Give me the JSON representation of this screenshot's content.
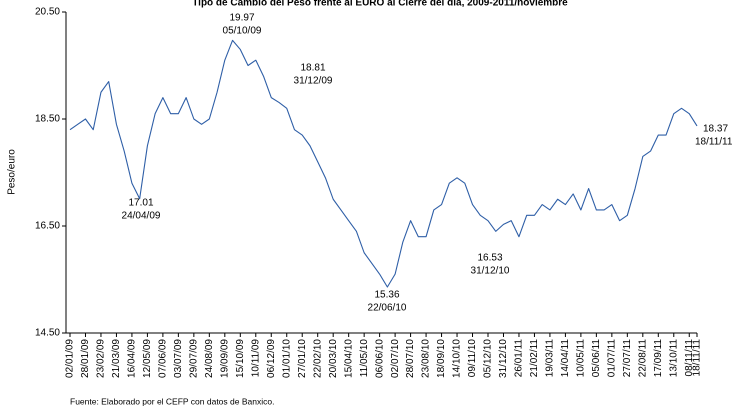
{
  "chart_data": {
    "type": "line",
    "title": "Tipo de Cambio del Peso frente al EURO al Cierre del día, 2009-2011/noviembre",
    "y_label": "Peso/euro",
    "source": "Fuente: Elaborado por el CEFP con datos de Banxico.",
    "categories": [
      "02/01/09",
      null,
      "28/01/09",
      null,
      "23/02/09",
      null,
      "21/03/09",
      null,
      "16/04/09",
      null,
      "12/05/09",
      null,
      "07/06/09",
      null,
      "03/07/09",
      null,
      "29/07/09",
      null,
      "24/08/09",
      null,
      "19/09/09",
      null,
      "15/10/09",
      null,
      "10/11/09",
      null,
      "06/12/09",
      null,
      "01/01/10",
      null,
      "27/01/10",
      null,
      "22/02/10",
      null,
      "20/03/10",
      null,
      "15/04/10",
      null,
      "11/05/10",
      null,
      "06/06/10",
      null,
      "02/07/10",
      null,
      "28/07/10",
      null,
      "23/08/10",
      null,
      "18/09/10",
      null,
      "14/10/10",
      null,
      "09/11/10",
      null,
      "05/12/10",
      null,
      "31/12/10",
      null,
      "26/01/11",
      null,
      "21/02/11",
      null,
      "19/03/11",
      null,
      "14/04/11",
      null,
      "10/05/11",
      null,
      "05/06/11",
      null,
      "01/07/11",
      null,
      "27/07/11",
      null,
      "22/08/11",
      null,
      "17/09/11",
      null,
      "13/10/11",
      null,
      "08/11/11",
      "18/11/11"
    ],
    "series": [
      {
        "name": "Peso/euro",
        "color": "#2f5fa7",
        "values": [
          18.3,
          18.4,
          18.5,
          18.3,
          19.0,
          19.2,
          18.4,
          17.9,
          17.3,
          17.01,
          18.0,
          18.6,
          18.9,
          18.6,
          18.6,
          18.9,
          18.5,
          18.4,
          18.5,
          19.0,
          19.6,
          19.97,
          19.8,
          19.5,
          19.6,
          19.3,
          18.9,
          18.81,
          18.7,
          18.3,
          18.2,
          18.0,
          17.7,
          17.4,
          17.0,
          16.8,
          16.6,
          16.4,
          16.0,
          15.8,
          15.6,
          15.36,
          15.6,
          16.2,
          16.6,
          16.3,
          16.3,
          16.8,
          16.9,
          17.3,
          17.4,
          17.3,
          16.9,
          16.7,
          16.6,
          16.4,
          16.53,
          16.6,
          16.3,
          16.7,
          16.7,
          16.9,
          16.8,
          17.0,
          16.9,
          17.1,
          16.8,
          17.2,
          16.8,
          16.8,
          16.9,
          16.6,
          16.7,
          17.2,
          17.8,
          17.9,
          18.2,
          18.2,
          18.6,
          18.7,
          18.6,
          18.37
        ]
      }
    ],
    "ylim": [
      14.5,
      20.5
    ],
    "yticks": [
      {
        "value": 14.5,
        "label": "14.50"
      },
      {
        "value": 16.5,
        "label": "16.50"
      },
      {
        "value": 18.5,
        "label": "18.50"
      },
      {
        "value": 20.5,
        "label": "20.50"
      }
    ],
    "grid": false,
    "annotations": [
      {
        "value": "19.97",
        "date": "05/10/09"
      },
      {
        "value": "18.81",
        "date": "31/12/09"
      },
      {
        "value": "17.01",
        "date": "24/04/09"
      },
      {
        "value": "15.36",
        "date": "22/06/10"
      },
      {
        "value": "16.53",
        "date": "31/12/10"
      },
      {
        "value": "18.37",
        "date": "18/11/11"
      }
    ]
  }
}
